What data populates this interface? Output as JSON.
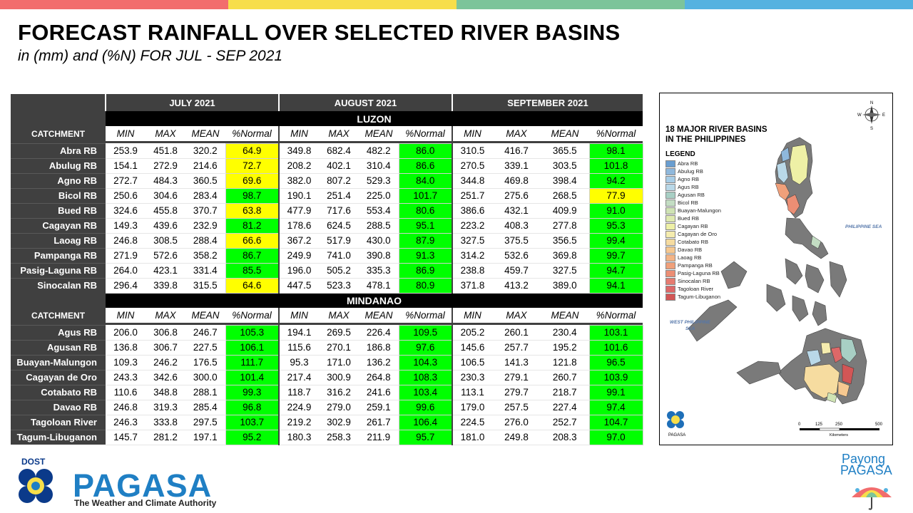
{
  "colors": {
    "top_bar": [
      "#f26d6d",
      "#f7de4a",
      "#7cc49a",
      "#55b2e0"
    ],
    "header_bg": "#404040",
    "yellow": "#ffff00",
    "green": "#00ff00"
  },
  "title": "FORECAST RAINFALL OVER SELECTED RIVER BASINS",
  "subtitle": "in (mm) and (%N) FOR  JUL - SEP 2021",
  "table": {
    "months": [
      "JULY 2021",
      "AUGUST 2021",
      "SEPTEMBER 2021"
    ],
    "catchment_label": "CATCHMENT",
    "col_headers": [
      "MIN",
      "MAX",
      "MEAN",
      "%Normal"
    ],
    "sections": [
      {
        "region": "LUZON",
        "rows": [
          {
            "name": "Abra RB",
            "jul": [
              "253.9",
              "451.8",
              "320.2",
              "64.9"
            ],
            "aug": [
              "349.8",
              "682.4",
              "482.2",
              "86.0"
            ],
            "sep": [
              "310.5",
              "416.7",
              "365.5",
              "98.1"
            ],
            "colors": [
              "yellow",
              "green",
              "green"
            ]
          },
          {
            "name": "Abulug RB",
            "jul": [
              "154.1",
              "272.9",
              "214.6",
              "72.7"
            ],
            "aug": [
              "208.2",
              "402.1",
              "310.4",
              "86.6"
            ],
            "sep": [
              "270.5",
              "339.1",
              "303.5",
              "101.8"
            ],
            "colors": [
              "yellow",
              "green",
              "green"
            ]
          },
          {
            "name": "Agno RB",
            "jul": [
              "272.7",
              "484.3",
              "360.5",
              "69.6"
            ],
            "aug": [
              "382.0",
              "807.2",
              "529.3",
              "84.0"
            ],
            "sep": [
              "344.8",
              "469.8",
              "398.4",
              "94.2"
            ],
            "colors": [
              "yellow",
              "green",
              "green"
            ]
          },
          {
            "name": "Bicol RB",
            "jul": [
              "250.6",
              "304.6",
              "283.4",
              "98.7"
            ],
            "aug": [
              "190.1",
              "251.4",
              "225.0",
              "101.7"
            ],
            "sep": [
              "251.7",
              "275.6",
              "268.5",
              "77.9"
            ],
            "colors": [
              "green",
              "green",
              "yellow"
            ]
          },
          {
            "name": "Bued RB",
            "jul": [
              "324.6",
              "455.8",
              "370.7",
              "63.8"
            ],
            "aug": [
              "477.9",
              "717.6",
              "553.4",
              "80.6"
            ],
            "sep": [
              "386.6",
              "432.1",
              "409.9",
              "91.0"
            ],
            "colors": [
              "yellow",
              "green",
              "green"
            ]
          },
          {
            "name": "Cagayan RB",
            "jul": [
              "149.3",
              "439.6",
              "232.9",
              "81.2"
            ],
            "aug": [
              "178.6",
              "624.5",
              "288.5",
              "95.1"
            ],
            "sep": [
              "223.2",
              "408.3",
              "277.8",
              "95.3"
            ],
            "colors": [
              "green",
              "green",
              "green"
            ]
          },
          {
            "name": "Laoag RB",
            "jul": [
              "246.8",
              "308.5",
              "288.4",
              "66.6"
            ],
            "aug": [
              "367.2",
              "517.9",
              "430.0",
              "87.9"
            ],
            "sep": [
              "327.5",
              "375.5",
              "356.5",
              "99.4"
            ],
            "colors": [
              "yellow",
              "green",
              "green"
            ]
          },
          {
            "name": "Pampanga RB",
            "jul": [
              "271.9",
              "572.6",
              "358.2",
              "86.7"
            ],
            "aug": [
              "249.9",
              "741.0",
              "390.8",
              "91.3"
            ],
            "sep": [
              "314.2",
              "532.6",
              "369.8",
              "99.7"
            ],
            "colors": [
              "green",
              "green",
              "green"
            ]
          },
          {
            "name": "Pasig-Laguna RB",
            "jul": [
              "264.0",
              "423.1",
              "331.4",
              "85.5"
            ],
            "aug": [
              "196.0",
              "505.2",
              "335.3",
              "86.9"
            ],
            "sep": [
              "238.8",
              "459.7",
              "327.5",
              "94.7"
            ],
            "colors": [
              "green",
              "green",
              "green"
            ]
          },
          {
            "name": "Sinocalan RB",
            "jul": [
              "296.4",
              "339.8",
              "315.5",
              "64.6"
            ],
            "aug": [
              "447.5",
              "523.3",
              "478.1",
              "80.9"
            ],
            "sep": [
              "371.8",
              "413.2",
              "389.0",
              "94.1"
            ],
            "colors": [
              "yellow",
              "green",
              "green"
            ]
          }
        ]
      },
      {
        "region": "MINDANAO",
        "rows": [
          {
            "name": "Agus RB",
            "jul": [
              "206.0",
              "306.8",
              "246.7",
              "105.3"
            ],
            "aug": [
              "194.1",
              "269.5",
              "226.4",
              "109.5"
            ],
            "sep": [
              "205.2",
              "260.1",
              "230.4",
              "103.1"
            ],
            "colors": [
              "green",
              "green",
              "green"
            ]
          },
          {
            "name": "Agusan RB",
            "jul": [
              "136.8",
              "306.7",
              "227.5",
              "106.1"
            ],
            "aug": [
              "115.6",
              "270.1",
              "186.8",
              "97.6"
            ],
            "sep": [
              "145.6",
              "257.7",
              "195.2",
              "101.6"
            ],
            "colors": [
              "green",
              "green",
              "green"
            ]
          },
          {
            "name": "Buayan-Malungon",
            "jul": [
              "109.3",
              "246.2",
              "176.5",
              "111.7"
            ],
            "aug": [
              "95.3",
              "171.0",
              "136.2",
              "104.3"
            ],
            "sep": [
              "106.5",
              "141.3",
              "121.8",
              "96.5"
            ],
            "colors": [
              "green",
              "green",
              "green"
            ]
          },
          {
            "name": "Cagayan de Oro",
            "jul": [
              "243.3",
              "342.6",
              "300.0",
              "101.4"
            ],
            "aug": [
              "217.4",
              "300.9",
              "264.8",
              "108.3"
            ],
            "sep": [
              "230.3",
              "279.1",
              "260.7",
              "103.9"
            ],
            "colors": [
              "green",
              "green",
              "green"
            ]
          },
          {
            "name": "Cotabato RB",
            "jul": [
              "110.6",
              "348.8",
              "288.1",
              "99.3"
            ],
            "aug": [
              "118.7",
              "316.2",
              "241.6",
              "103.4"
            ],
            "sep": [
              "113.1",
              "279.7",
              "218.7",
              "99.1"
            ],
            "colors": [
              "green",
              "green",
              "green"
            ]
          },
          {
            "name": "Davao RB",
            "jul": [
              "246.8",
              "319.3",
              "285.4",
              "96.8"
            ],
            "aug": [
              "224.9",
              "279.0",
              "259.1",
              "99.6"
            ],
            "sep": [
              "179.0",
              "257.5",
              "227.4",
              "97.4"
            ],
            "colors": [
              "green",
              "green",
              "green"
            ]
          },
          {
            "name": "Tagoloan River",
            "jul": [
              "246.3",
              "333.8",
              "297.5",
              "103.7"
            ],
            "aug": [
              "219.2",
              "302.9",
              "261.7",
              "106.4"
            ],
            "sep": [
              "224.5",
              "276.0",
              "252.7",
              "104.7"
            ],
            "colors": [
              "green",
              "green",
              "green"
            ]
          },
          {
            "name": "Tagum-Libuganon",
            "jul": [
              "145.7",
              "281.2",
              "197.1",
              "95.2"
            ],
            "aug": [
              "180.3",
              "258.3",
              "211.9",
              "95.7"
            ],
            "sep": [
              "181.0",
              "249.8",
              "208.3",
              "97.0"
            ],
            "colors": [
              "green",
              "green",
              "green"
            ]
          }
        ]
      }
    ]
  },
  "map": {
    "title_line1": "18 MAJOR RIVER BASINS",
    "title_line2": "IN THE PHILIPPINES",
    "legend_title": "LEGEND",
    "legend_items": [
      {
        "label": "Abra RB",
        "color": "#6a9ed0"
      },
      {
        "label": "Abulug RB",
        "color": "#8fb8dc"
      },
      {
        "label": "Agno RB",
        "color": "#a7cde6"
      },
      {
        "label": "Agus RB",
        "color": "#b9d8e8"
      },
      {
        "label": "Agusan RB",
        "color": "#a8cfc4"
      },
      {
        "label": "Bicol RB",
        "color": "#c3ddc3"
      },
      {
        "label": "Buayan-Malungon",
        "color": "#cfe3b4"
      },
      {
        "label": "Bued RB",
        "color": "#dfeab0"
      },
      {
        "label": "Cagayan RB",
        "color": "#eef0a6"
      },
      {
        "label": "Cagayan de Oro",
        "color": "#f5ecae"
      },
      {
        "label": "Cotabato RB",
        "color": "#f6dca0"
      },
      {
        "label": "Davao RB",
        "color": "#f6c890"
      },
      {
        "label": "Laoag RB",
        "color": "#f4b486"
      },
      {
        "label": "Pampanga RB",
        "color": "#f0a07a"
      },
      {
        "label": "Pasig-Laguna RB",
        "color": "#ec8e74"
      },
      {
        "label": "Sinocalan RB",
        "color": "#e67b70"
      },
      {
        "label": "Tagoloan River",
        "color": "#dd6868"
      },
      {
        "label": "Tagum-Libuganon",
        "color": "#d25656"
      }
    ],
    "sea_labels": [
      "PHILIPPINE SEA",
      "WEST PHILIPPINE",
      "SEA"
    ],
    "scale_ticks": [
      "0",
      "125",
      "250",
      "500"
    ],
    "scale_unit": "Kilometers",
    "logo_caption": "PAGASA",
    "compass": [
      "N",
      "W",
      "E",
      "S"
    ]
  },
  "footer": {
    "dost": "DOST",
    "pagasa": "PAGASA",
    "tagline": "The Weather and Climate Authority",
    "payong1": "Payong",
    "payong2": "PAGASA"
  }
}
